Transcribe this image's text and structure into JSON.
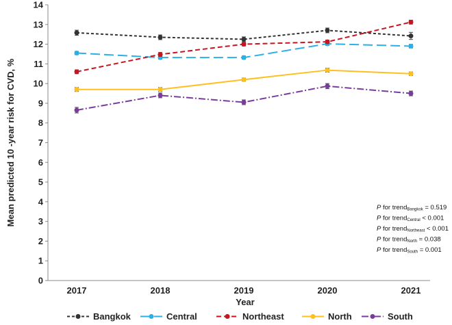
{
  "chart_data": {
    "type": "line",
    "title": "",
    "xlabel": "Year",
    "ylabel": "Mean predicted 10 -year risk for CVD, %",
    "ylim": [
      0,
      14
    ],
    "yticks": [
      0,
      1,
      2,
      3,
      4,
      5,
      6,
      7,
      8,
      9,
      10,
      11,
      12,
      13,
      14
    ],
    "categories": [
      "2017",
      "2018",
      "2019",
      "2020",
      "2021"
    ],
    "grid": false,
    "legend_position": "bottom",
    "series": [
      {
        "name": "Bangkok",
        "values": [
          12.58,
          12.35,
          12.25,
          12.7,
          12.42
        ],
        "errors": [
          0.13,
          0.12,
          0.12,
          0.12,
          0.18
        ],
        "color": "#333333",
        "dash": "4,3"
      },
      {
        "name": "Central",
        "values": [
          11.55,
          11.32,
          11.32,
          12.02,
          11.9
        ],
        "errors": [
          0.08,
          0.08,
          0.08,
          0.08,
          0.09
        ],
        "color": "#2ab0e6",
        "dash": "14,6"
      },
      {
        "name": "Northeast",
        "values": [
          10.6,
          11.48,
          12.0,
          12.12,
          13.12
        ],
        "errors": [
          0.1,
          0.1,
          0.09,
          0.09,
          0.1
        ],
        "color": "#c8141e",
        "dash": "7,4"
      },
      {
        "name": "North",
        "values": [
          9.7,
          9.7,
          10.2,
          10.68,
          10.5
        ],
        "errors": [
          0.1,
          0.1,
          0.08,
          0.1,
          0.09
        ],
        "color": "#ffc01e",
        "dash": ""
      },
      {
        "name": "South",
        "values": [
          8.65,
          9.4,
          9.05,
          9.87,
          9.5
        ],
        "errors": [
          0.14,
          0.12,
          0.12,
          0.13,
          0.12
        ],
        "color": "#7a3c9c",
        "dash": "10,3,2,3"
      }
    ],
    "annotations": [
      {
        "pre": "P",
        "mid": " for trend",
        "sub": "Bangkok",
        "post": " = 0.519"
      },
      {
        "pre": "P",
        "mid": " for trend",
        "sub": "Central",
        "post": " < 0.001"
      },
      {
        "pre": "P",
        "mid": " for trend",
        "sub": "Northeast",
        "post": " < 0.001"
      },
      {
        "pre": "P",
        "mid": "  for  trend",
        "sub": "North",
        "post": " = 0.038"
      },
      {
        "pre": "P",
        "mid": "  for  trend",
        "sub": "South",
        "post": " = 0.001"
      }
    ]
  }
}
